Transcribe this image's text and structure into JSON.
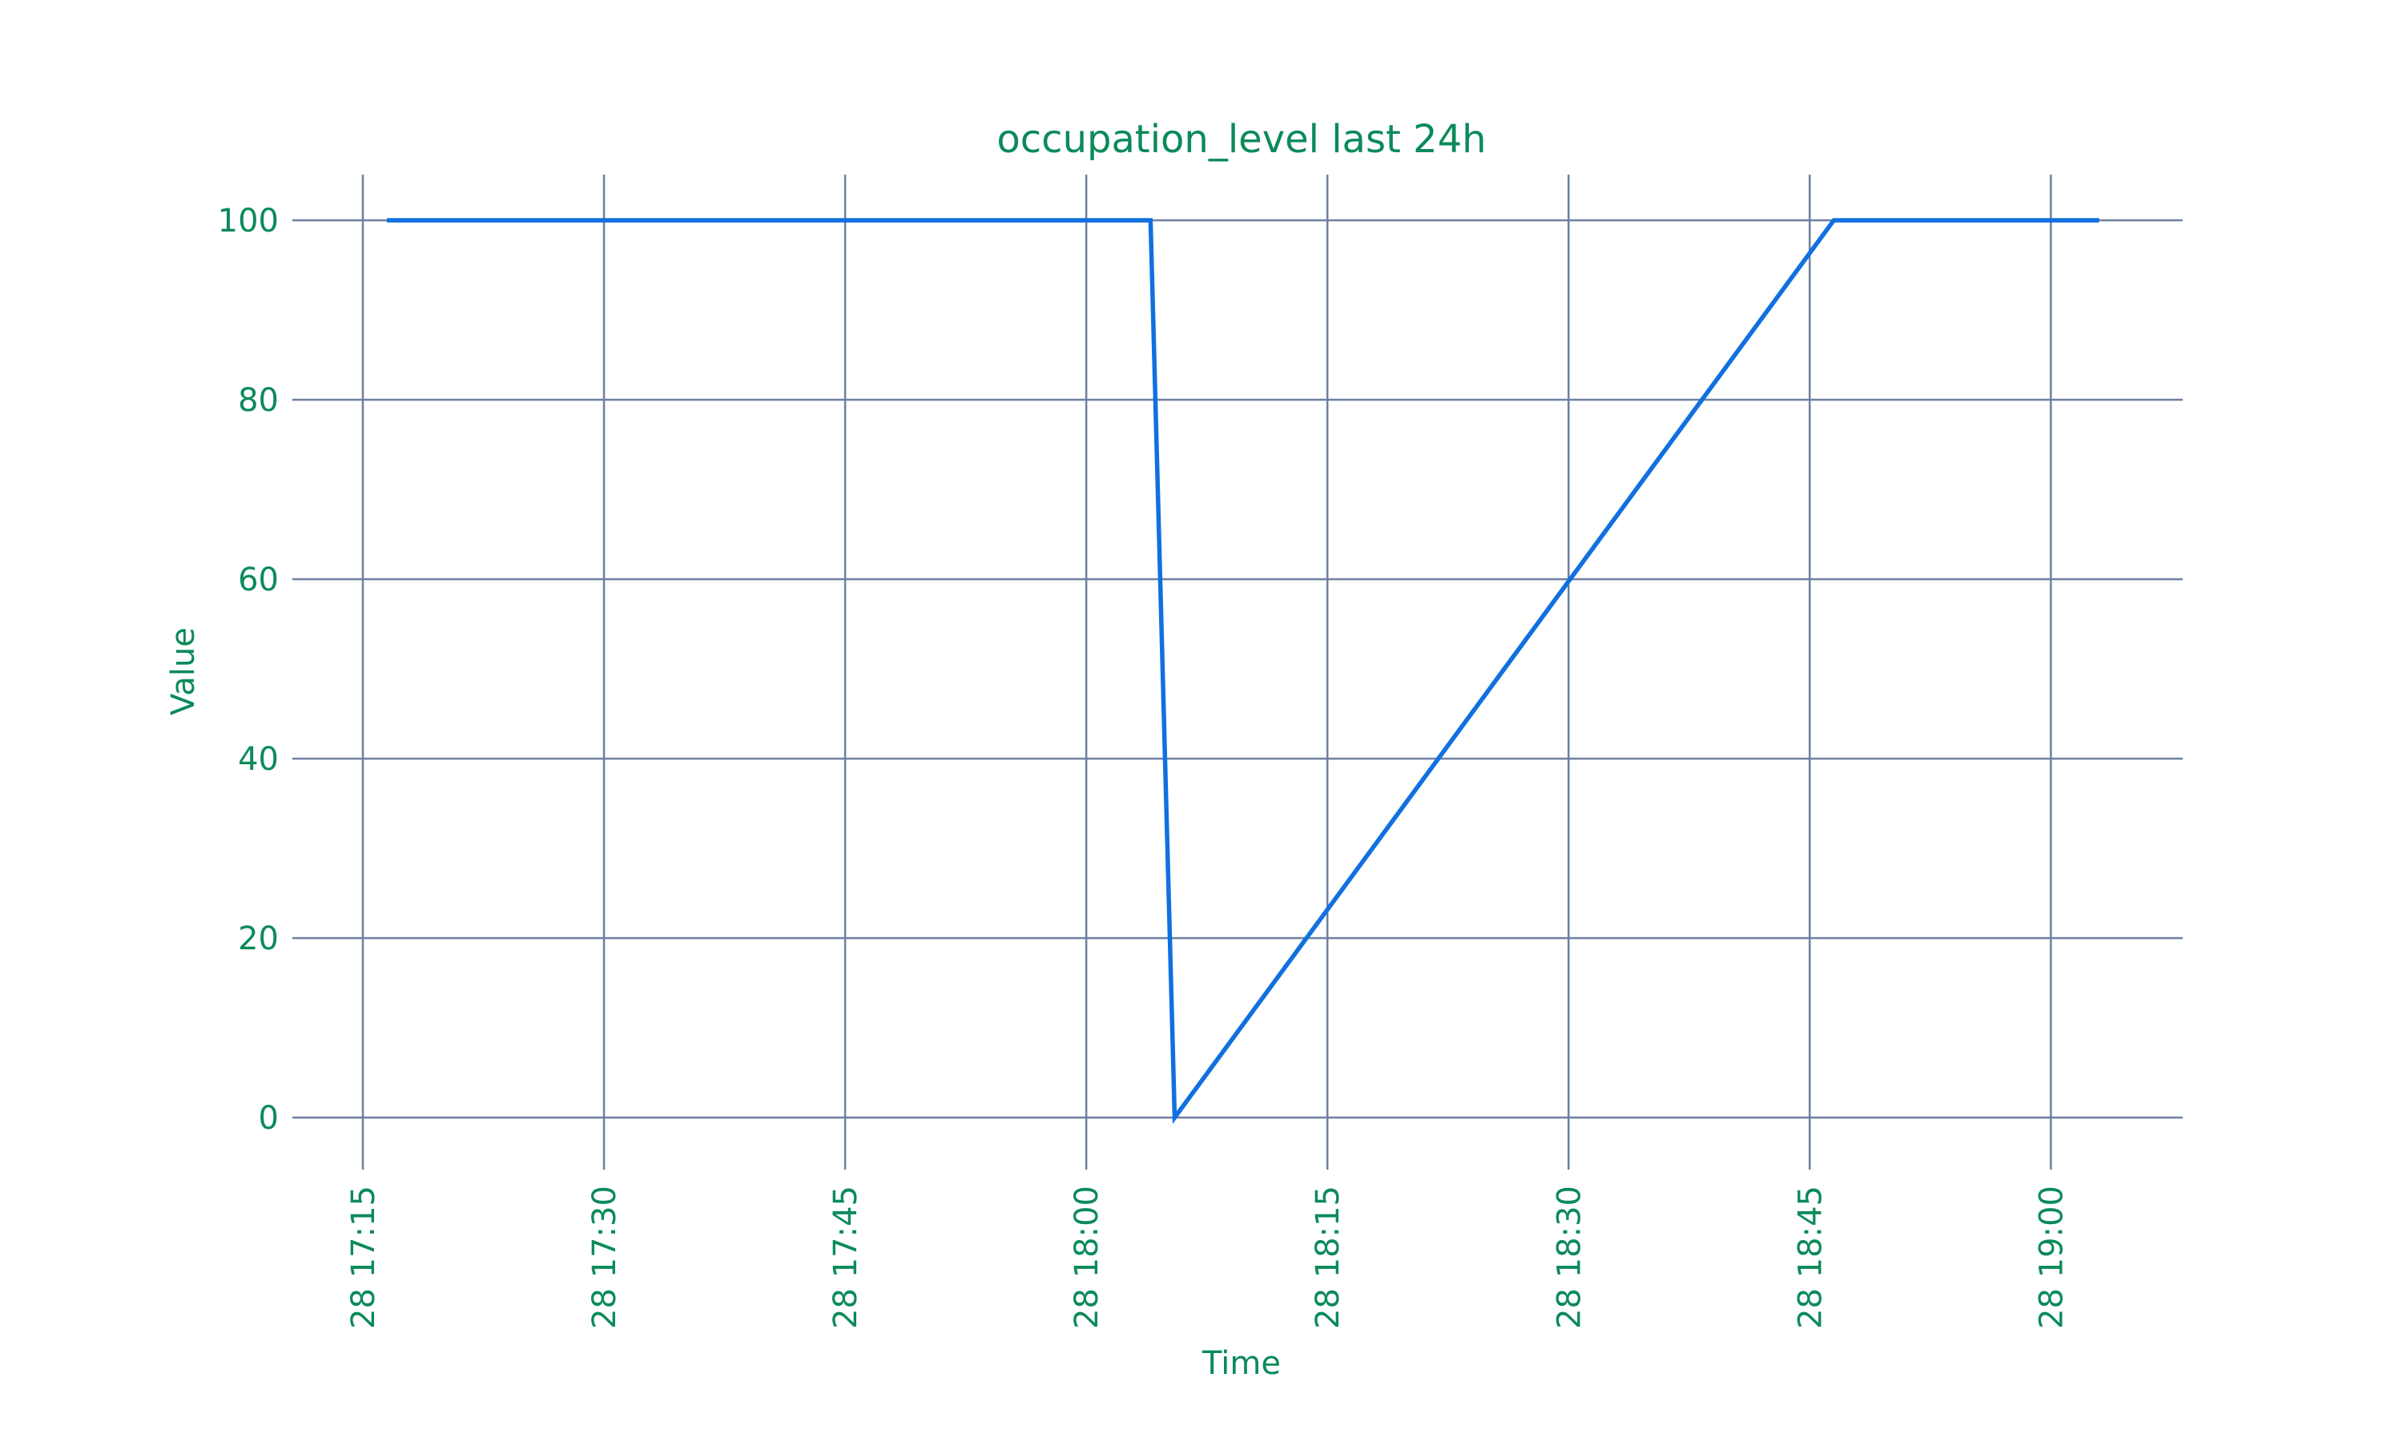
{
  "colors": {
    "text": "#0b8a5a",
    "grid": "#6e7fa0",
    "series": "#1070e0",
    "background": "#ffffff"
  },
  "chart_data": {
    "type": "line",
    "title": "occupation_level last 24h",
    "xlabel": "Time",
    "ylabel": "Value",
    "x_axis_type": "time",
    "xlim": [
      "28 17:12",
      "28 19:06"
    ],
    "ylim": [
      -6,
      105
    ],
    "yticks": [
      0,
      20,
      40,
      60,
      80,
      100
    ],
    "xticks": [
      "28 17:15",
      "28 17:30",
      "28 17:45",
      "28 18:00",
      "28 18:15",
      "28 18:30",
      "28 18:45",
      "28 19:00"
    ],
    "grid": true,
    "legend": "none",
    "series": [
      {
        "x": [
          "28 17:16.5",
          "28 18:04",
          "28 18:05.5",
          "28 18:46.5",
          "28 19:03"
        ],
        "y": [
          100,
          100,
          0,
          100,
          100
        ]
      }
    ]
  }
}
